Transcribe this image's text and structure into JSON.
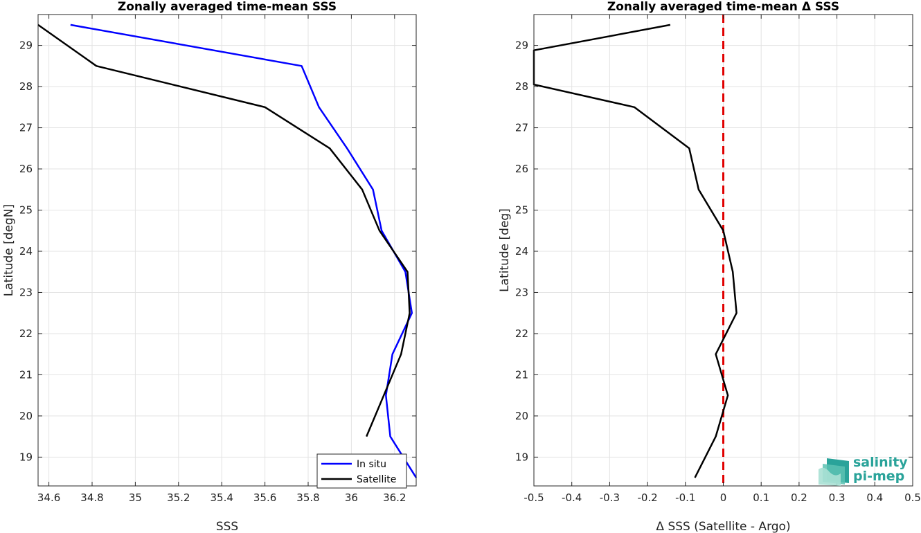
{
  "chart_data": [
    {
      "type": "line",
      "title": "Zonally averaged time-mean SSS",
      "xlabel": "SSS",
      "ylabel": "Latitude [degN]",
      "xlim": [
        34.55,
        36.3
      ],
      "ylim": [
        18.3,
        29.75
      ],
      "xticks": [
        "34.6",
        "34.8",
        "35",
        "35.2",
        "35.4",
        "35.6",
        "35.8",
        "36",
        "36.2"
      ],
      "yticks": [
        "19",
        "20",
        "21",
        "22",
        "23",
        "24",
        "25",
        "26",
        "27",
        "28",
        "29"
      ],
      "grid": true,
      "legend_position": "bottom-right",
      "series": [
        {
          "name": "In situ",
          "color": "#0000ff",
          "points": [
            [
              34.7,
              29.5
            ],
            [
              35.77,
              28.5
            ],
            [
              35.85,
              27.5
            ],
            [
              35.98,
              26.5
            ],
            [
              36.1,
              25.5
            ],
            [
              36.14,
              24.5
            ],
            [
              36.25,
              23.5
            ],
            [
              36.28,
              22.5
            ],
            [
              36.19,
              21.5
            ],
            [
              36.16,
              20.5
            ],
            [
              36.18,
              19.5
            ],
            [
              36.3,
              18.5
            ]
          ]
        },
        {
          "name": "Satellite",
          "color": "#000000",
          "points": [
            [
              34.55,
              29.5
            ],
            [
              34.82,
              28.5
            ],
            [
              35.6,
              27.5
            ],
            [
              35.9,
              26.5
            ],
            [
              36.05,
              25.5
            ],
            [
              36.13,
              24.5
            ],
            [
              36.26,
              23.5
            ],
            [
              36.27,
              22.5
            ],
            [
              36.23,
              21.5
            ],
            [
              36.15,
              20.5
            ],
            [
              36.07,
              19.5
            ]
          ]
        }
      ]
    },
    {
      "type": "line",
      "title": "Zonally averaged time-mean Δ SSS",
      "xlabel": "Δ SSS (Satellite - Argo)",
      "ylabel": "Latitude [deg]",
      "xlim": [
        -0.5,
        0.5
      ],
      "ylim": [
        18.3,
        29.75
      ],
      "xticks": [
        "-0.5",
        "-0.4",
        "-0.3",
        "-0.2",
        "-0.1",
        "0",
        "0.1",
        "0.2",
        "0.3",
        "0.4",
        "0.5"
      ],
      "yticks": [
        "19",
        "20",
        "21",
        "22",
        "23",
        "24",
        "25",
        "26",
        "27",
        "28",
        "29"
      ],
      "grid": true,
      "reference_line": {
        "x": 0,
        "color": "#e00000",
        "style": "dashed"
      },
      "series": [
        {
          "color": "#000000",
          "points": [
            [
              -0.14,
              29.5
            ],
            [
              -0.5,
              28.88
            ],
            [
              -0.5,
              28.05
            ],
            [
              -0.235,
              27.5
            ],
            [
              -0.09,
              26.5
            ],
            [
              -0.065,
              25.5
            ],
            [
              0.0,
              24.5
            ],
            [
              0.025,
              23.5
            ],
            [
              0.035,
              22.5
            ],
            [
              -0.02,
              21.5
            ],
            [
              0.012,
              20.5
            ],
            [
              -0.02,
              19.5
            ],
            [
              -0.075,
              18.5
            ]
          ]
        }
      ]
    }
  ],
  "logo": {
    "line1": "salinity",
    "line2": "pi-mep",
    "color": "#2aa39a"
  }
}
